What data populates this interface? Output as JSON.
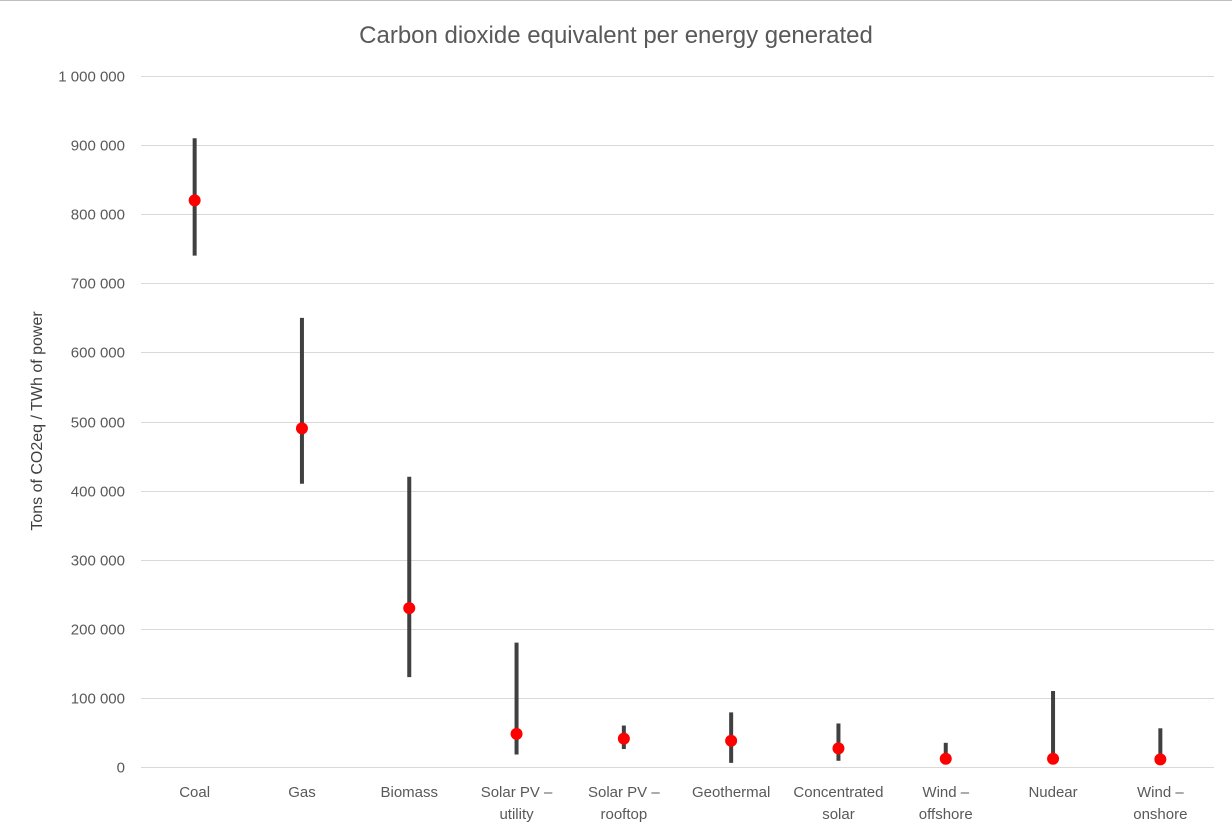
{
  "chart_data": {
    "type": "scatter",
    "title": "Carbon dioxide equivalent per energy generated",
    "xlabel": "",
    "ylabel": "Tons of CO2eq / TWh of power",
    "ylim": [
      0,
      1000000
    ],
    "yticks": [
      0,
      100000,
      200000,
      300000,
      400000,
      500000,
      600000,
      700000,
      800000,
      900000,
      1000000
    ],
    "ytick_labels": [
      "0",
      "100 000",
      "200 000",
      "300 000",
      "400 000",
      "500 000",
      "600 000",
      "700 000",
      "800 000",
      "900 000",
      "1 000 000"
    ],
    "grid": true,
    "legend": "none",
    "colors": {
      "point": "#ff0000",
      "range": "#404040",
      "grid": "#d9d9d9"
    },
    "categories": [
      [
        "Coal"
      ],
      [
        "Gas"
      ],
      [
        "Biomass"
      ],
      [
        "Solar PV –",
        "utility"
      ],
      [
        "Solar PV –",
        "rooftop"
      ],
      [
        "Geothermal"
      ],
      [
        "Concentrated",
        "solar"
      ],
      [
        "Wind –",
        "offshore"
      ],
      [
        "Nudear"
      ],
      [
        "Wind –",
        "onshore"
      ]
    ],
    "series": [
      {
        "values": [
          820000,
          490000,
          230000,
          48000,
          41000,
          38000,
          27000,
          12000,
          12000,
          11000
        ]
      },
      {
        "values": [
          910000,
          650000,
          420000,
          180000,
          60000,
          79000,
          63000,
          35000,
          110000,
          56000
        ]
      },
      {
        "values": [
          740000,
          410000,
          130000,
          18000,
          26000,
          6000,
          9000,
          8000,
          3700,
          7000
        ]
      }
    ]
  }
}
